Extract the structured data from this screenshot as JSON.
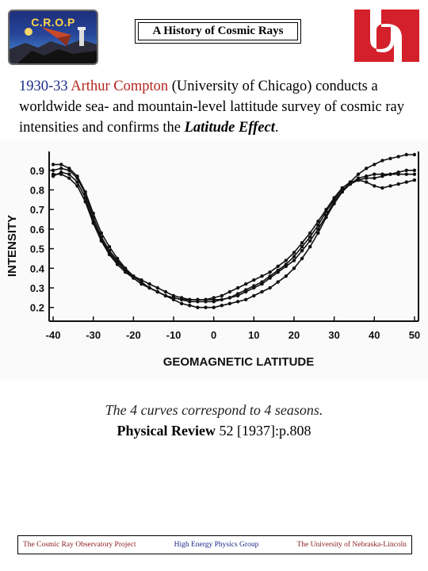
{
  "header": {
    "crop_logo_text": "C.R.O.P",
    "title": "A History of Cosmic Rays",
    "unl_logo_icon": "unl-n-logo"
  },
  "intro": {
    "years": "1930-33",
    "name": "Arthur Compton",
    "text_part1": " (University of Chicago) conducts a worldwide  sea- and mountain-level lattitude survey of cosmic ray intensities and confirms the ",
    "effect": "Latitude Effect",
    "end": "."
  },
  "chart_data": {
    "type": "line",
    "ylabel": "INTENSITY",
    "xlabel": "GEOMAGNETIC LATITUDE",
    "x_ticks": [
      "-40",
      "-30",
      "-20",
      "-10",
      "0",
      "10",
      "20",
      "30",
      "40",
      "50"
    ],
    "y_ticks": [
      "0.9",
      "0.8",
      "0.7",
      "0.6",
      "0.5",
      "0.4",
      "0.3",
      "0.2"
    ],
    "xlim": [
      -41,
      51
    ],
    "ylim": [
      0.13,
      0.98
    ],
    "grid": false,
    "series": [
      {
        "x": [
          -40,
          -38,
          -36,
          -34,
          -32,
          -30,
          -28,
          -26,
          -24,
          -22,
          -20,
          -18,
          -16,
          -14,
          -12,
          -10,
          -8,
          -6,
          -4,
          -2,
          0,
          2,
          4,
          6,
          8,
          10,
          12,
          14,
          16,
          18,
          20,
          22,
          24,
          26,
          28,
          30,
          32,
          34,
          36,
          38,
          40,
          42,
          44,
          46,
          48,
          50
        ],
        "values": [
          0.93,
          0.93,
          0.91,
          0.87,
          0.79,
          0.68,
          0.58,
          0.51,
          0.45,
          0.4,
          0.36,
          0.33,
          0.3,
          0.28,
          0.26,
          0.24,
          0.22,
          0.21,
          0.2,
          0.2,
          0.2,
          0.21,
          0.22,
          0.23,
          0.24,
          0.26,
          0.28,
          0.3,
          0.33,
          0.36,
          0.4,
          0.45,
          0.51,
          0.58,
          0.66,
          0.73,
          0.79,
          0.84,
          0.88,
          0.91,
          0.93,
          0.95,
          0.96,
          0.97,
          0.98,
          0.98
        ]
      },
      {
        "x": [
          -40,
          -38,
          -36,
          -34,
          -32,
          -30,
          -28,
          -26,
          -24,
          -22,
          -20,
          -18,
          -16,
          -14,
          -12,
          -10,
          -8,
          -6,
          -4,
          -2,
          0,
          2,
          4,
          6,
          8,
          10,
          12,
          14,
          16,
          18,
          20,
          22,
          24,
          26,
          28,
          30,
          32,
          34,
          36,
          38,
          40,
          42,
          44,
          46,
          48,
          50
        ],
        "values": [
          0.9,
          0.91,
          0.9,
          0.86,
          0.78,
          0.66,
          0.56,
          0.49,
          0.44,
          0.39,
          0.35,
          0.32,
          0.3,
          0.28,
          0.26,
          0.25,
          0.24,
          0.24,
          0.24,
          0.24,
          0.24,
          0.24,
          0.25,
          0.27,
          0.29,
          0.31,
          0.33,
          0.36,
          0.39,
          0.42,
          0.46,
          0.51,
          0.56,
          0.62,
          0.69,
          0.75,
          0.8,
          0.83,
          0.85,
          0.86,
          0.86,
          0.87,
          0.88,
          0.89,
          0.9,
          0.9
        ]
      },
      {
        "x": [
          -40,
          -38,
          -36,
          -34,
          -32,
          -30,
          -28,
          -26,
          -24,
          -22,
          -20,
          -18,
          -16,
          -14,
          -12,
          -10,
          -8,
          -6,
          -4,
          -2,
          0,
          2,
          4,
          6,
          8,
          10,
          12,
          14,
          16,
          18,
          20,
          22,
          24,
          26,
          28,
          30,
          32,
          34,
          36,
          38,
          40,
          42,
          44,
          46,
          48,
          50
        ],
        "values": [
          0.87,
          0.89,
          0.88,
          0.84,
          0.76,
          0.64,
          0.55,
          0.48,
          0.43,
          0.39,
          0.36,
          0.34,
          0.32,
          0.3,
          0.28,
          0.26,
          0.25,
          0.24,
          0.24,
          0.24,
          0.25,
          0.26,
          0.28,
          0.3,
          0.32,
          0.34,
          0.36,
          0.38,
          0.41,
          0.44,
          0.48,
          0.53,
          0.58,
          0.64,
          0.7,
          0.76,
          0.81,
          0.84,
          0.85,
          0.84,
          0.82,
          0.81,
          0.82,
          0.83,
          0.84,
          0.85
        ]
      },
      {
        "x": [
          -40,
          -38,
          -36,
          -34,
          -32,
          -30,
          -28,
          -26,
          -24,
          -22,
          -20,
          -18,
          -16,
          -14,
          -12,
          -10,
          -8,
          -6,
          -4,
          -2,
          0,
          2,
          4,
          6,
          8,
          10,
          12,
          14,
          16,
          18,
          20,
          22,
          24,
          26,
          28,
          30,
          32,
          34,
          36,
          38,
          40,
          42,
          44,
          46,
          48,
          50
        ],
        "values": [
          0.88,
          0.88,
          0.86,
          0.82,
          0.74,
          0.63,
          0.54,
          0.47,
          0.42,
          0.38,
          0.35,
          0.32,
          0.3,
          0.28,
          0.26,
          0.25,
          0.24,
          0.23,
          0.23,
          0.23,
          0.23,
          0.24,
          0.25,
          0.26,
          0.28,
          0.3,
          0.32,
          0.35,
          0.38,
          0.41,
          0.44,
          0.49,
          0.54,
          0.6,
          0.67,
          0.74,
          0.79,
          0.83,
          0.86,
          0.87,
          0.88,
          0.88,
          0.88,
          0.88,
          0.88,
          0.88
        ]
      }
    ]
  },
  "captions": {
    "line1": "The 4 curves correspond to 4 seasons.",
    "journal": "Physical Review",
    "ref": " 52 [1937]:p.808"
  },
  "footer": {
    "left": "The Cosmic Ray Observatory Project",
    "center": "High Energy Physics Group",
    "right": "The University of Nebraska-Lincoln"
  },
  "colors": {
    "name_red": "#b3261e",
    "years_blue": "#1a2a8a",
    "unl_red": "#d3202a"
  }
}
